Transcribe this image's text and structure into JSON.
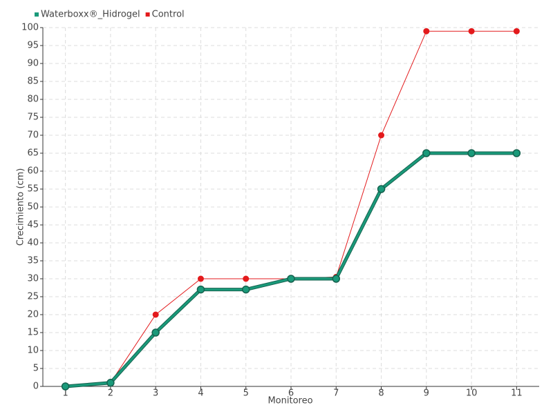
{
  "chart_data": {
    "type": "line",
    "x_label": "Monitoreo",
    "y_label": "Crecimiento (cm)",
    "categories": [
      "1",
      "2",
      "3",
      "4",
      "5",
      "6",
      "7",
      "8",
      "9",
      "10",
      "11"
    ],
    "series": [
      {
        "name": "Waterboxx®_Hidrogel",
        "color": "#1a9a7a",
        "values": [
          0,
          1,
          15,
          27,
          27,
          30,
          30,
          55,
          65,
          65,
          65
        ]
      },
      {
        "name": "Control",
        "color": "#e31a1c",
        "values": [
          0,
          1,
          20,
          30,
          30,
          30,
          30.5,
          70,
          99,
          99,
          99
        ]
      }
    ],
    "ylim": [
      0,
      100
    ],
    "yticks": [
      0,
      5,
      10,
      15,
      20,
      25,
      30,
      35,
      40,
      45,
      50,
      55,
      60,
      65,
      70,
      75,
      80,
      85,
      90,
      95,
      100
    ],
    "grid": true,
    "legend": "top-left"
  }
}
